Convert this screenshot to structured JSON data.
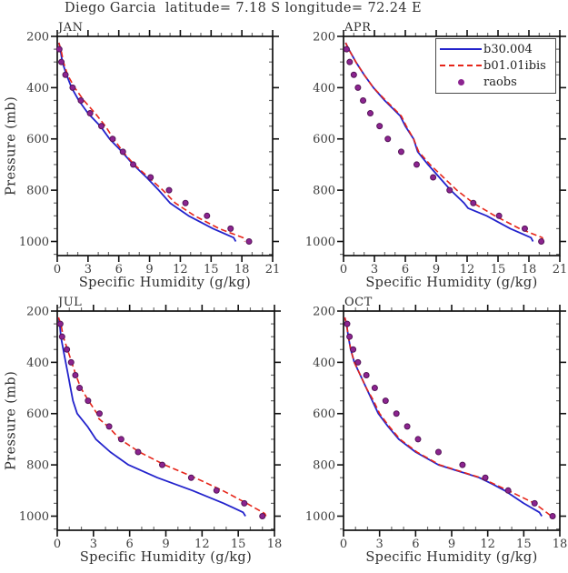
{
  "title": "Diego Garcia  latitude= 7.18 S longitude= 72.24 E",
  "axis": {
    "xlabel": "Specific Humidity (g/kg)",
    "ylabel": "Pressure (mb)"
  },
  "colors": {
    "model1": "#2323cc",
    "model2": "#e62519",
    "obs_fill": "#8c2490",
    "obs_edge": "#541457",
    "axis": "#111111"
  },
  "legend": {
    "items": [
      {
        "label": "b30.004",
        "color": "#2323cc",
        "style": "solid"
      },
      {
        "label": "b01.01ibis",
        "color": "#e62519",
        "style": "dashed"
      },
      {
        "label": "raobs",
        "color": "#8c2490",
        "style": "dot"
      }
    ]
  },
  "chart_data": [
    {
      "type": "line",
      "title": "JAN",
      "xlabel": "Specific Humidity (g/kg)",
      "ylabel": "Pressure (mb)",
      "xlim": [
        0,
        21
      ],
      "xticks": [
        0,
        3,
        6,
        9,
        12,
        15,
        18,
        21
      ],
      "xminor": 1,
      "ylim": [
        200,
        1055
      ],
      "yticks": [
        200,
        400,
        600,
        800,
        1000
      ],
      "yminor": 50,
      "y_orientation": "pressure increases downward",
      "grid": false,
      "series": [
        {
          "name": "b30.004",
          "mode": "line",
          "dash": false,
          "color": "#2323cc",
          "points_pq": [
            [
              225,
              0.15
            ],
            [
              250,
              0.3
            ],
            [
              300,
              0.5
            ],
            [
              350,
              0.9
            ],
            [
              400,
              1.4
            ],
            [
              450,
              2.1
            ],
            [
              500,
              3.0
            ],
            [
              550,
              4.2
            ],
            [
              600,
              5.1
            ],
            [
              650,
              6.3
            ],
            [
              700,
              7.4
            ],
            [
              750,
              8.7
            ],
            [
              800,
              9.9
            ],
            [
              850,
              11.0
            ],
            [
              900,
              12.8
            ],
            [
              950,
              15.2
            ],
            [
              985,
              17.2
            ],
            [
              1000,
              17.4
            ]
          ]
        },
        {
          "name": "b01.01ibis",
          "mode": "line",
          "dash": true,
          "color": "#e62519",
          "points_pq": [
            [
              225,
              0.15
            ],
            [
              250,
              0.35
            ],
            [
              300,
              0.6
            ],
            [
              350,
              1.0
            ],
            [
              400,
              1.7
            ],
            [
              450,
              2.6
            ],
            [
              500,
              3.7
            ],
            [
              550,
              4.7
            ],
            [
              600,
              5.5
            ],
            [
              650,
              6.4
            ],
            [
              700,
              7.5
            ],
            [
              750,
              8.9
            ],
            [
              800,
              10.3
            ],
            [
              850,
              11.5
            ],
            [
              900,
              13.4
            ],
            [
              950,
              15.8
            ],
            [
              985,
              18.1
            ],
            [
              1000,
              18.3
            ]
          ]
        },
        {
          "name": "raobs",
          "mode": "scatter",
          "color": "#8c2490",
          "edge": "#541457",
          "points_pq": [
            [
              250,
              0.2
            ],
            [
              300,
              0.4
            ],
            [
              350,
              0.8
            ],
            [
              400,
              1.5
            ],
            [
              450,
              2.3
            ],
            [
              500,
              3.2
            ],
            [
              550,
              4.3
            ],
            [
              600,
              5.4
            ],
            [
              650,
              6.4
            ],
            [
              700,
              7.4
            ],
            [
              750,
              9.1
            ],
            [
              800,
              10.9
            ],
            [
              850,
              12.5
            ],
            [
              900,
              14.6
            ],
            [
              950,
              16.9
            ],
            [
              1000,
              18.7
            ]
          ]
        }
      ]
    },
    {
      "type": "line",
      "title": "APR",
      "xlabel": "Specific Humidity (g/kg)",
      "ylabel": "Pressure (mb)",
      "xlim": [
        0,
        21
      ],
      "xticks": [
        0,
        3,
        6,
        9,
        12,
        15,
        18,
        21
      ],
      "xminor": 1,
      "ylim": [
        200,
        1055
      ],
      "yticks": [
        200,
        400,
        600,
        800,
        1000
      ],
      "yminor": 50,
      "y_orientation": "pressure increases downward",
      "grid": false,
      "series": [
        {
          "name": "b30.004",
          "mode": "line",
          "dash": false,
          "color": "#2323cc",
          "points_pq": [
            [
              225,
              0.2
            ],
            [
              250,
              0.5
            ],
            [
              300,
              1.2
            ],
            [
              350,
              2.0
            ],
            [
              400,
              2.9
            ],
            [
              450,
              4.0
            ],
            [
              510,
              5.5
            ],
            [
              550,
              6.0
            ],
            [
              600,
              6.8
            ],
            [
              650,
              7.2
            ],
            [
              700,
              8.2
            ],
            [
              750,
              9.3
            ],
            [
              800,
              10.4
            ],
            [
              850,
              11.7
            ],
            [
              870,
              12.1
            ],
            [
              900,
              13.9
            ],
            [
              950,
              16.2
            ],
            [
              985,
              18.2
            ],
            [
              1000,
              18.4
            ]
          ]
        },
        {
          "name": "b01.01ibis",
          "mode": "line",
          "dash": true,
          "color": "#e62519",
          "points_pq": [
            [
              225,
              0.2
            ],
            [
              250,
              0.5
            ],
            [
              300,
              1.2
            ],
            [
              350,
              2.0
            ],
            [
              400,
              2.9
            ],
            [
              450,
              4.1
            ],
            [
              510,
              5.6
            ],
            [
              550,
              6.1
            ],
            [
              600,
              6.8
            ],
            [
              650,
              7.3
            ],
            [
              700,
              8.4
            ],
            [
              750,
              9.7
            ],
            [
              800,
              11.0
            ],
            [
              850,
              12.6
            ],
            [
              900,
              14.7
            ],
            [
              950,
              17.1
            ],
            [
              985,
              19.3
            ],
            [
              1000,
              19.4
            ]
          ]
        },
        {
          "name": "raobs",
          "mode": "scatter",
          "color": "#8c2490",
          "edge": "#541457",
          "points_pq": [
            [
              250,
              0.3
            ],
            [
              300,
              0.6
            ],
            [
              350,
              1.0
            ],
            [
              400,
              1.4
            ],
            [
              450,
              1.9
            ],
            [
              500,
              2.6
            ],
            [
              550,
              3.5
            ],
            [
              600,
              4.3
            ],
            [
              650,
              5.6
            ],
            [
              700,
              7.1
            ],
            [
              750,
              8.7
            ],
            [
              800,
              10.3
            ],
            [
              850,
              12.6
            ],
            [
              900,
              15.1
            ],
            [
              950,
              17.6
            ],
            [
              1000,
              19.2
            ]
          ]
        }
      ]
    },
    {
      "type": "line",
      "title": "JUL",
      "xlabel": "Specific Humidity (g/kg)",
      "ylabel": "Pressure (mb)",
      "xlim": [
        0,
        18
      ],
      "xticks": [
        0,
        3,
        6,
        9,
        12,
        15,
        18
      ],
      "xminor": 1,
      "ylim": [
        200,
        1055
      ],
      "yticks": [
        200,
        400,
        600,
        800,
        1000
      ],
      "yminor": 50,
      "y_orientation": "pressure increases downward",
      "grid": false,
      "series": [
        {
          "name": "b30.004",
          "mode": "line",
          "dash": false,
          "color": "#2323cc",
          "points_pq": [
            [
              225,
              0.1
            ],
            [
              250,
              0.2
            ],
            [
              300,
              0.3
            ],
            [
              350,
              0.5
            ],
            [
              400,
              0.7
            ],
            [
              450,
              0.9
            ],
            [
              500,
              1.1
            ],
            [
              550,
              1.3
            ],
            [
              600,
              1.65
            ],
            [
              650,
              2.5
            ],
            [
              700,
              3.2
            ],
            [
              750,
              4.4
            ],
            [
              800,
              5.9
            ],
            [
              850,
              8.3
            ],
            [
              900,
              11.2
            ],
            [
              950,
              13.8
            ],
            [
              985,
              15.4
            ],
            [
              1000,
              15.6
            ]
          ]
        },
        {
          "name": "b01.01ibis",
          "mode": "line",
          "dash": true,
          "color": "#e62519",
          "points_pq": [
            [
              225,
              0.1
            ],
            [
              250,
              0.3
            ],
            [
              300,
              0.5
            ],
            [
              350,
              0.85
            ],
            [
              400,
              1.2
            ],
            [
              450,
              1.55
            ],
            [
              500,
              1.95
            ],
            [
              550,
              2.6
            ],
            [
              600,
              3.3
            ],
            [
              620,
              3.45
            ],
            [
              650,
              4.2
            ],
            [
              700,
              5.2
            ],
            [
              750,
              6.8
            ],
            [
              800,
              8.9
            ],
            [
              850,
              11.4
            ],
            [
              900,
              13.7
            ],
            [
              950,
              15.7
            ],
            [
              990,
              17.2
            ],
            [
              1000,
              17.3
            ]
          ]
        },
        {
          "name": "raobs",
          "mode": "scatter",
          "color": "#8c2490",
          "edge": "#541457",
          "points_pq": [
            [
              250,
              0.25
            ],
            [
              300,
              0.4
            ],
            [
              350,
              0.8
            ],
            [
              400,
              1.15
            ],
            [
              450,
              1.5
            ],
            [
              500,
              1.85
            ],
            [
              550,
              2.55
            ],
            [
              600,
              3.5
            ],
            [
              650,
              4.3
            ],
            [
              700,
              5.3
            ],
            [
              750,
              6.7
            ],
            [
              800,
              8.7
            ],
            [
              850,
              11.1
            ],
            [
              900,
              13.2
            ],
            [
              950,
              15.5
            ],
            [
              1000,
              17.0
            ]
          ]
        }
      ]
    },
    {
      "type": "line",
      "title": "OCT",
      "xlabel": "Specific Humidity (g/kg)",
      "ylabel": "Pressure (mb)",
      "xlim": [
        0,
        18
      ],
      "xticks": [
        0,
        3,
        6,
        9,
        12,
        15,
        18
      ],
      "xminor": 1,
      "ylim": [
        200,
        1055
      ],
      "yticks": [
        200,
        400,
        600,
        800,
        1000
      ],
      "yminor": 50,
      "y_orientation": "pressure increases downward",
      "grid": false,
      "series": [
        {
          "name": "b30.004",
          "mode": "line",
          "dash": false,
          "color": "#2323cc",
          "points_pq": [
            [
              225,
              0.1
            ],
            [
              250,
              0.25
            ],
            [
              300,
              0.4
            ],
            [
              350,
              0.6
            ],
            [
              400,
              0.9
            ],
            [
              450,
              1.4
            ],
            [
              500,
              1.9
            ],
            [
              550,
              2.4
            ],
            [
              600,
              2.9
            ],
            [
              650,
              3.7
            ],
            [
              700,
              4.6
            ],
            [
              750,
              6.0
            ],
            [
              800,
              7.9
            ],
            [
              850,
              11.3
            ],
            [
              875,
              12.4
            ],
            [
              900,
              13.4
            ],
            [
              950,
              15.0
            ],
            [
              985,
              16.3
            ],
            [
              1000,
              16.5
            ]
          ]
        },
        {
          "name": "b01.01ibis",
          "mode": "line",
          "dash": true,
          "color": "#e62519",
          "points_pq": [
            [
              225,
              0.1
            ],
            [
              250,
              0.25
            ],
            [
              300,
              0.4
            ],
            [
              350,
              0.6
            ],
            [
              400,
              0.9
            ],
            [
              450,
              1.4
            ],
            [
              500,
              1.9
            ],
            [
              550,
              2.5
            ],
            [
              600,
              3.0
            ],
            [
              650,
              3.8
            ],
            [
              700,
              4.7
            ],
            [
              750,
              6.1
            ],
            [
              800,
              8.0
            ],
            [
              850,
              11.4
            ],
            [
              900,
              13.7
            ],
            [
              950,
              15.9
            ],
            [
              1000,
              17.3
            ]
          ]
        },
        {
          "name": "raobs",
          "mode": "scatter",
          "color": "#8c2490",
          "edge": "#541457",
          "points_pq": [
            [
              250,
              0.3
            ],
            [
              300,
              0.5
            ],
            [
              350,
              0.8
            ],
            [
              400,
              1.2
            ],
            [
              450,
              1.9
            ],
            [
              500,
              2.6
            ],
            [
              550,
              3.5
            ],
            [
              600,
              4.4
            ],
            [
              650,
              5.3
            ],
            [
              700,
              6.2
            ],
            [
              750,
              7.9
            ],
            [
              800,
              9.9
            ],
            [
              850,
              11.8
            ],
            [
              900,
              13.7
            ],
            [
              950,
              15.9
            ],
            [
              1000,
              17.4
            ]
          ]
        }
      ]
    }
  ]
}
